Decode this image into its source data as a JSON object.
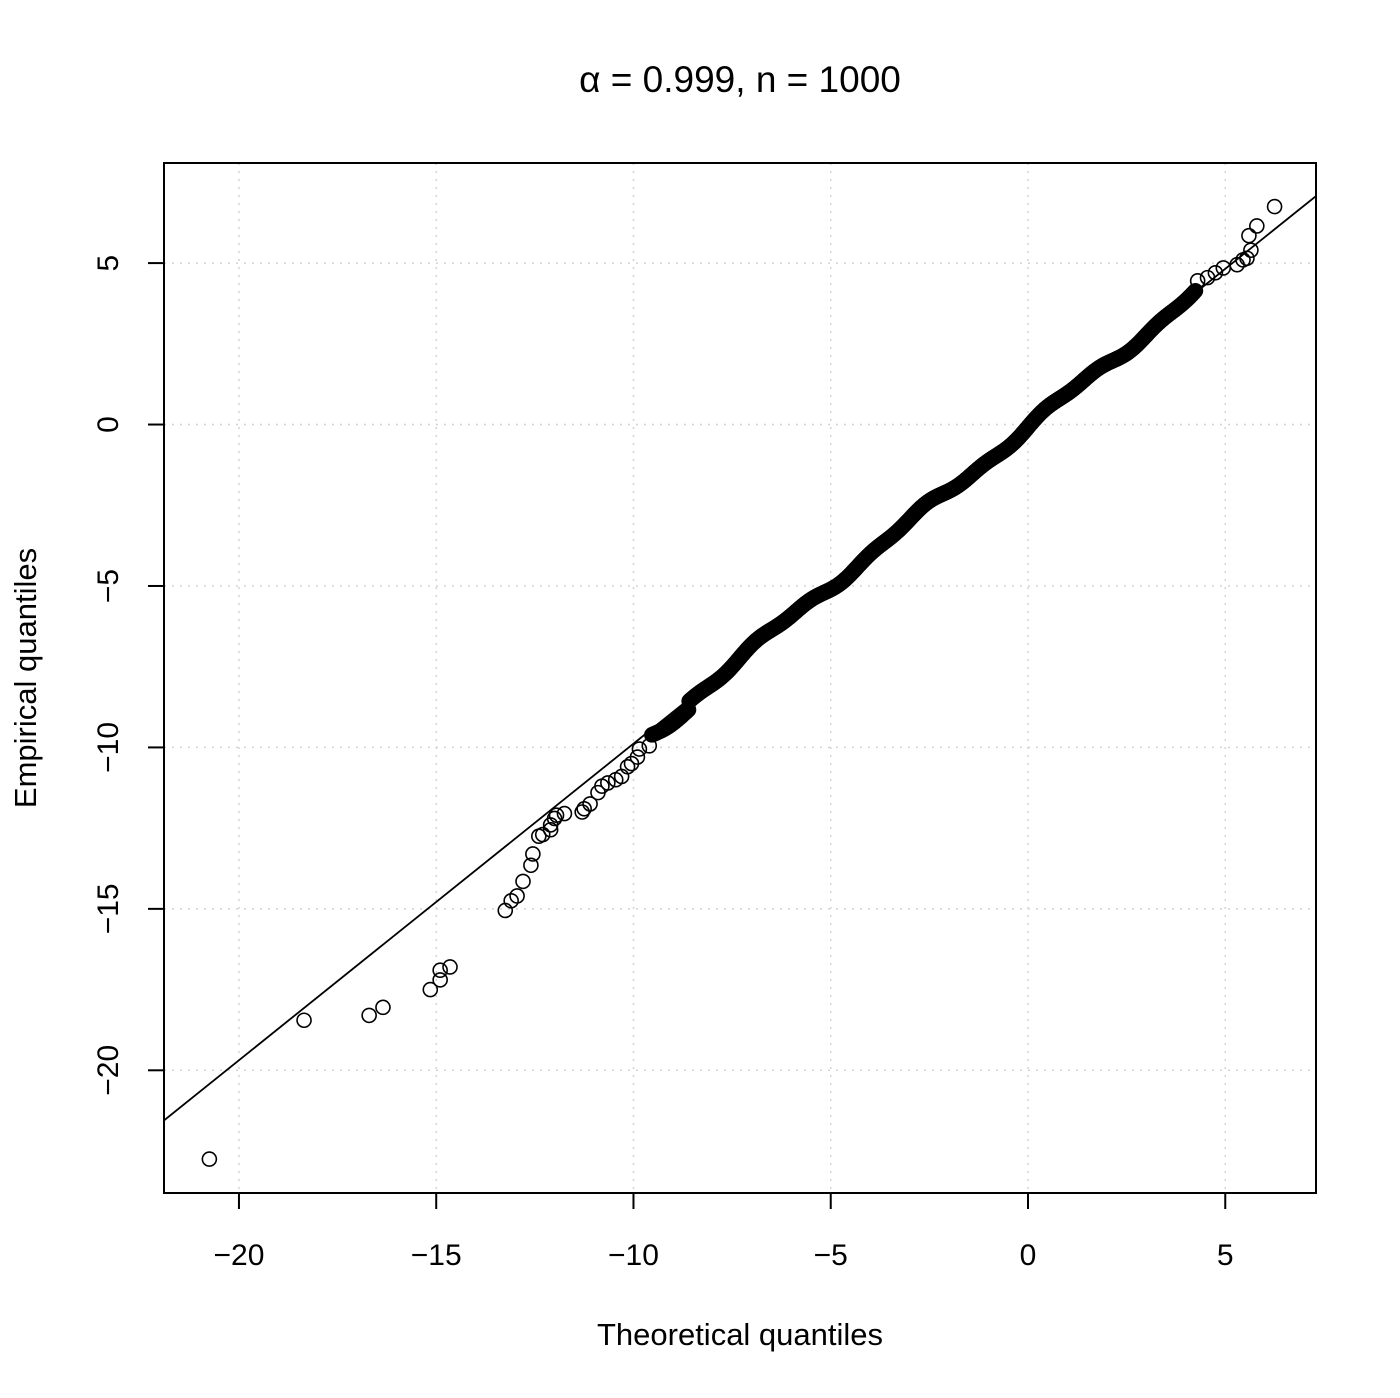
{
  "chart_data": {
    "type": "scatter",
    "title": "α = 0.999, n = 1000",
    "xlabel": "Theoretical quantiles",
    "ylabel": "Empirical quantiles",
    "xlim": [
      -21.9,
      7.3
    ],
    "ylim": [
      -23.8,
      8.1
    ],
    "x_ticks": [
      -20,
      -15,
      -10,
      -5,
      0,
      5
    ],
    "y_ticks": [
      -20,
      -15,
      -10,
      -5,
      0,
      5
    ],
    "x_tick_labels": [
      "−20",
      "−15",
      "−10",
      "−5",
      "0",
      "5"
    ],
    "y_tick_labels": [
      "−20",
      "−15",
      "−10",
      "−5",
      "0",
      "5"
    ],
    "grid": true,
    "reference_line": {
      "slope": 0.9804,
      "intercept": -0.08
    },
    "outlier_points": [
      [
        -20.75,
        -22.75
      ],
      [
        -18.35,
        -18.45
      ],
      [
        -16.7,
        -18.3
      ],
      [
        -16.35,
        -18.05
      ],
      [
        -15.15,
        -17.5
      ],
      [
        -14.9,
        -17.2
      ],
      [
        -14.9,
        -16.9
      ],
      [
        -14.65,
        -16.8
      ],
      [
        -13.25,
        -15.05
      ],
      [
        -13.1,
        -14.75
      ],
      [
        -12.95,
        -14.6
      ],
      [
        -12.8,
        -14.15
      ],
      [
        -12.6,
        -13.65
      ],
      [
        -12.55,
        -13.3
      ],
      [
        -12.4,
        -12.75
      ],
      [
        -12.3,
        -12.7
      ],
      [
        -12.1,
        -12.55
      ],
      [
        -12.1,
        -12.4
      ],
      [
        -12.0,
        -12.2
      ],
      [
        -11.95,
        -12.1
      ],
      [
        -11.75,
        -12.05
      ],
      [
        -11.3,
        -12.0
      ],
      [
        -11.25,
        -11.9
      ],
      [
        -11.1,
        -11.75
      ],
      [
        -10.9,
        -11.4
      ],
      [
        -10.8,
        -11.2
      ],
      [
        -10.65,
        -11.1
      ],
      [
        -10.45,
        -11.0
      ],
      [
        -10.3,
        -10.9
      ],
      [
        -10.15,
        -10.6
      ],
      [
        -10.05,
        -10.5
      ],
      [
        -9.9,
        -10.3
      ],
      [
        -9.85,
        -10.05
      ],
      [
        -9.6,
        -9.95
      ],
      [
        4.3,
        4.45
      ],
      [
        4.55,
        4.55
      ],
      [
        4.75,
        4.7
      ],
      [
        4.95,
        4.85
      ],
      [
        5.3,
        4.95
      ],
      [
        5.45,
        5.1
      ],
      [
        5.55,
        5.15
      ],
      [
        5.65,
        5.4
      ],
      [
        5.6,
        5.85
      ],
      [
        5.8,
        6.15
      ],
      [
        6.25,
        6.75
      ]
    ],
    "core_series": {
      "count": 955,
      "x_from": -9.55,
      "x_to": 4.25
    }
  }
}
